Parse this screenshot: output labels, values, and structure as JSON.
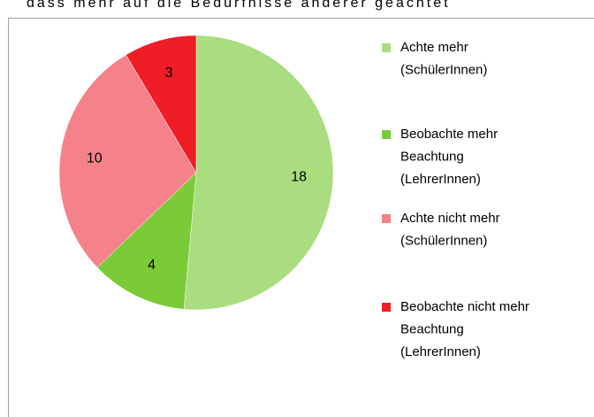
{
  "text": "dass mehr auf die Bedürfnisse anderer geachtet",
  "chart_data": {
    "type": "pie",
    "series": [
      {
        "name": [
          "Achte mehr",
          "(SchülerInnen)"
        ],
        "color": "#a9dd7f",
        "values": [
          18
        ]
      },
      {
        "name": [
          "Beobachte mehr",
          "Beachtung",
          "(LehrerInnen)"
        ],
        "color": "#7acb37",
        "values": [
          4
        ]
      },
      {
        "name": [
          "Achte nicht mehr",
          "(SchülerInnen)"
        ],
        "color": "#f5828a",
        "values": [
          10
        ]
      },
      {
        "name": [
          "Beobachte nicht mehr",
          "Beachtung",
          "(LehrerInnen)"
        ],
        "color": "#ee1d26",
        "values": [
          3
        ]
      }
    ],
    "legend": "right"
  }
}
